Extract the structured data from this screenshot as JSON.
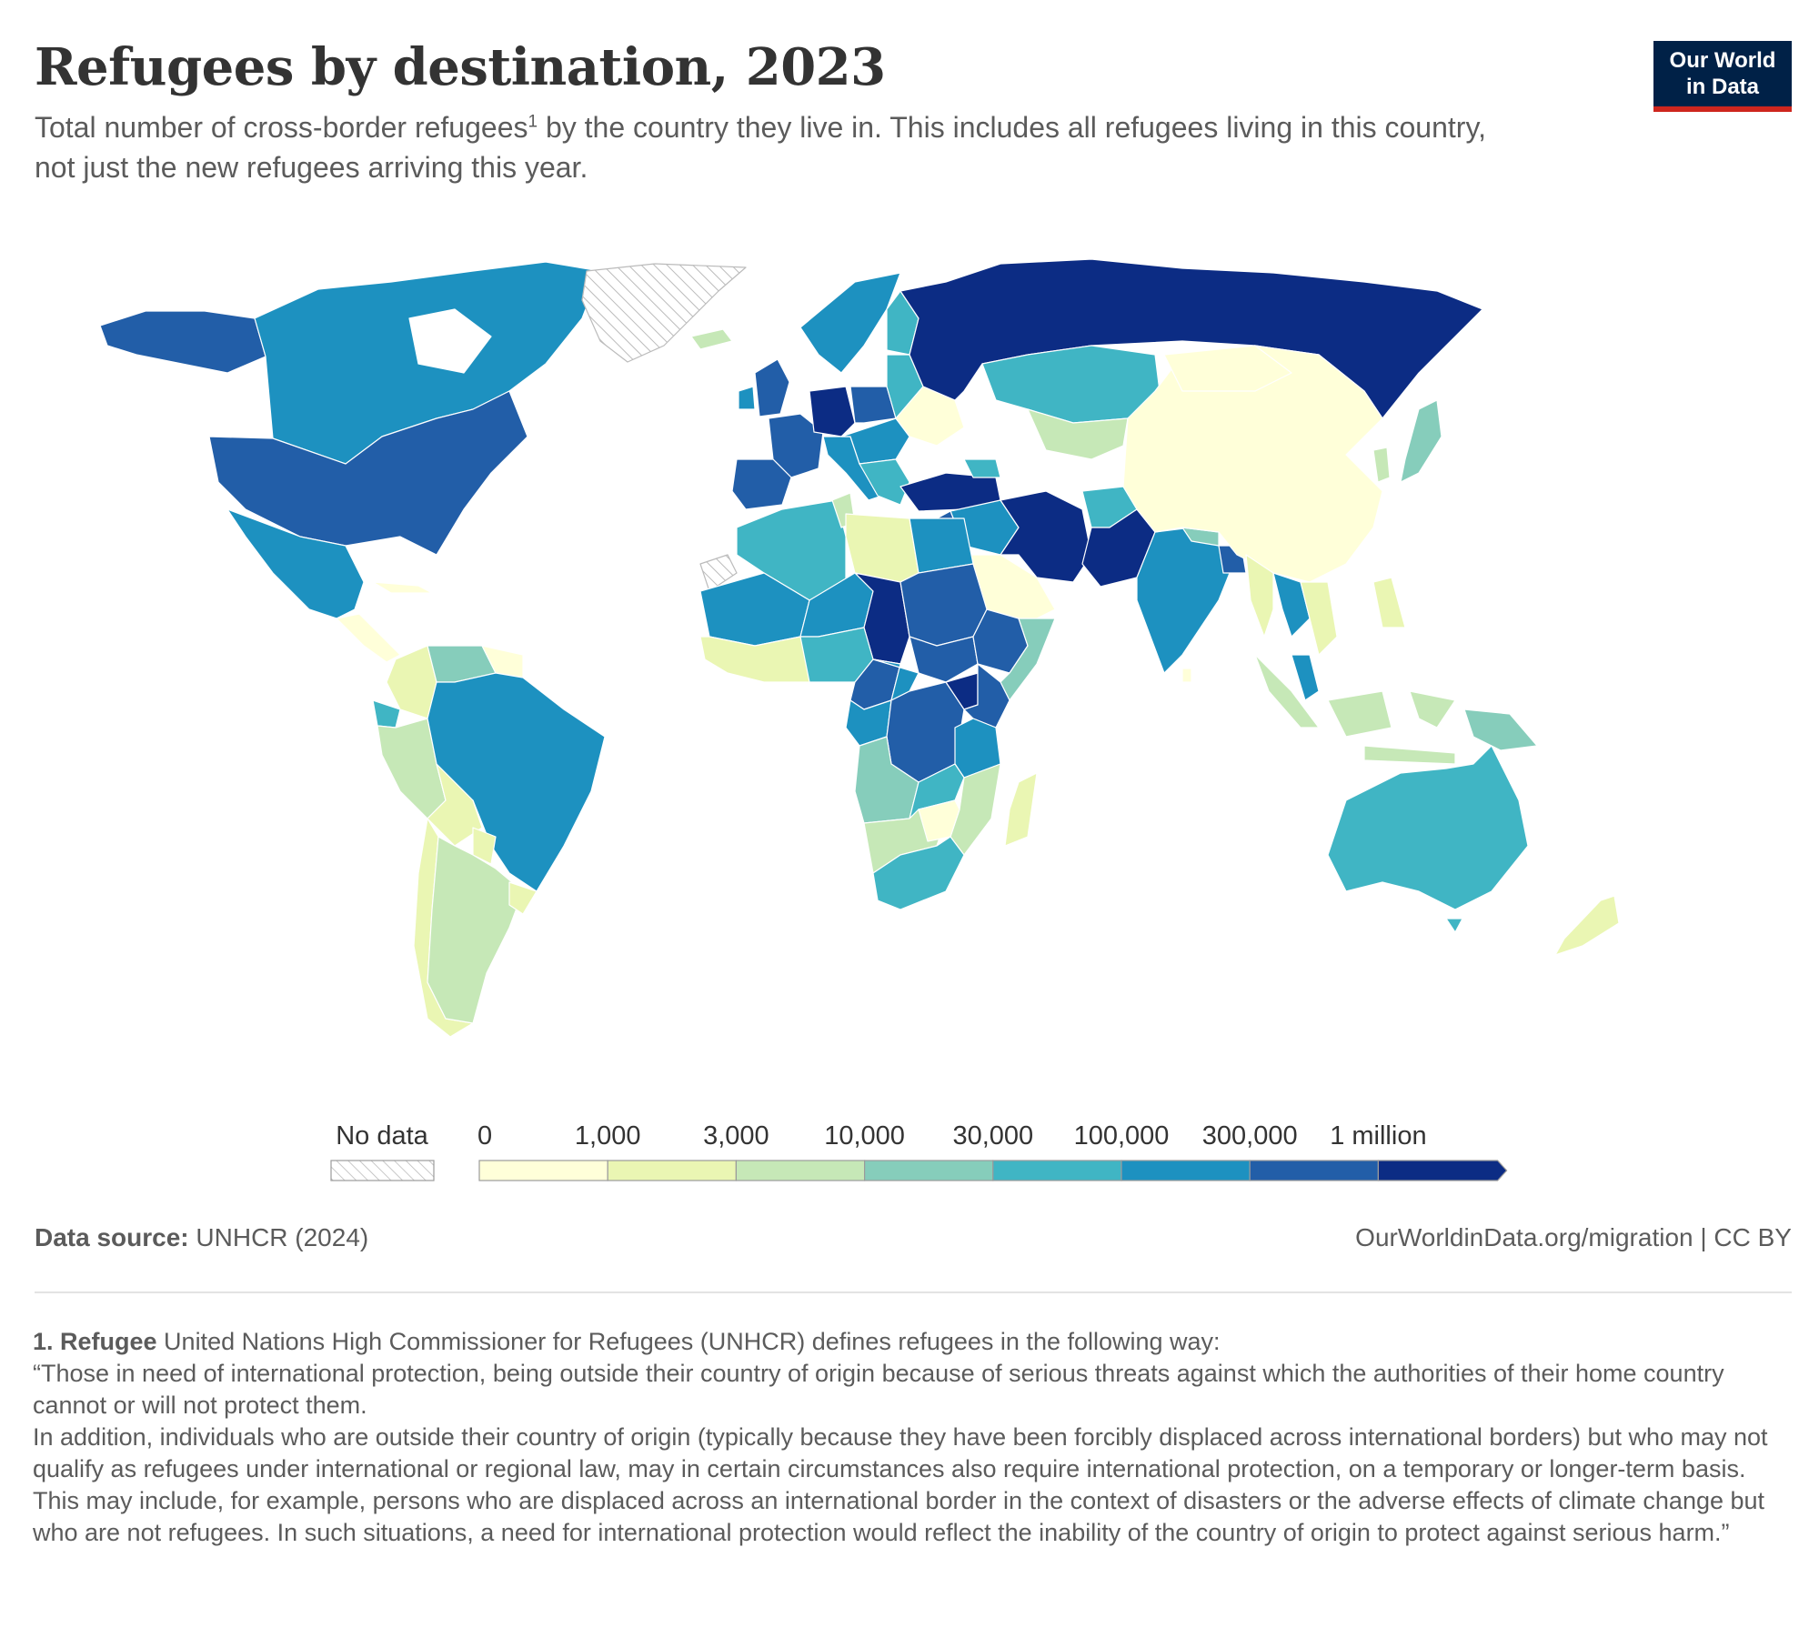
{
  "header": {
    "title": "Refugees by destination, 2023",
    "subtitle_pre": "Total number of cross-border refugees",
    "subtitle_sup": "1",
    "subtitle_post": " by the country they live in. This includes all refugees living in this country, not just the new refugees arriving this year."
  },
  "logo": {
    "line1": "Our World",
    "line2": "in Data",
    "background": "#002147",
    "accent": "#ce261e"
  },
  "map": {
    "type": "choropleth",
    "projection": "Robinson",
    "variable": "Total number of cross-border refugees, 2023",
    "no_data_label": "No data",
    "bins": [
      {
        "range": "0 – 1,000",
        "color": "#ffffd9"
      },
      {
        "range": "1,000 – 3,000",
        "color": "#eaf6b3"
      },
      {
        "range": "3,000 – 10,000",
        "color": "#c6e8b7"
      },
      {
        "range": "10,000 – 30,000",
        "color": "#86cdbb"
      },
      {
        "range": "30,000 – 100,000",
        "color": "#40b5c4"
      },
      {
        "range": "100,000 – 300,000",
        "color": "#1d91c0"
      },
      {
        "range": "300,000 – 1 million",
        "color": "#225ea8"
      },
      {
        "range": "over 1 million",
        "color": "#0c2c84"
      }
    ],
    "legend_ticks": [
      "0",
      "1,000",
      "3,000",
      "10,000",
      "30,000",
      "100,000",
      "300,000",
      "1 million"
    ],
    "country_bins": {
      "Canada": "100,000 – 300,000",
      "United States": "300,000 – 1 million",
      "Mexico": "100,000 – 300,000",
      "Greenland": "No data",
      "Brazil": "100,000 – 300,000",
      "Argentina": "3,000 – 10,000",
      "Russia": "over 1 million",
      "China": "0 – 1,000",
      "India": "100,000 – 300,000",
      "Iran": "over 1 million",
      "Pakistan": "over 1 million",
      "Turkey": "over 1 million",
      "Germany": "over 1 million",
      "Poland": "300,000 – 1 million",
      "Ukraine": "0 – 1,000",
      "Chad": "over 1 million",
      "Sudan": "300,000 – 1 million",
      "Uganda": "over 1 million",
      "Ethiopia": "300,000 – 1 million",
      "Kenya": "300,000 – 1 million",
      "DR Congo": "300,000 – 1 million",
      "Australia": "30,000 – 100,000",
      "Kazakhstan": "30,000 – 100,000",
      "Libya": "1,000 – 3,000",
      "Saudi Arabia": "0 – 1,000",
      "Indonesia": "3,000 – 10,000",
      "Japan": "10,000 – 30,000",
      "New Zealand": "1,000 – 3,000",
      "South Africa": "30,000 – 100,000",
      "Bangladesh": "300,000 – 1 million"
    }
  },
  "footer": {
    "source_label": "Data source:",
    "source_value": "UNHCR (2024)",
    "url": "OurWorldinData.org/migration | CC BY"
  },
  "footnote": {
    "term": "1. Refugee",
    "lines": [
      " United Nations High Commissioner for Refugees (UNHCR) defines refugees in the following way:",
      "“Those in need of international protection, being outside their country of origin because of serious threats against which the authorities of their home country cannot or will not protect them.",
      "In addition, individuals who are outside their country of origin (typically because they have been forcibly displaced across international borders) but who may not qualify as refugees under international or regional law, may in certain circumstances also require international protection, on a temporary or longer-term basis.",
      "This may include, for example, persons who are displaced across an international border in the context of disasters or the adverse effects of climate change but who are not refugees. In such situations, a need for international protection would reflect the inability of the country of origin to protect against serious harm.”"
    ]
  }
}
